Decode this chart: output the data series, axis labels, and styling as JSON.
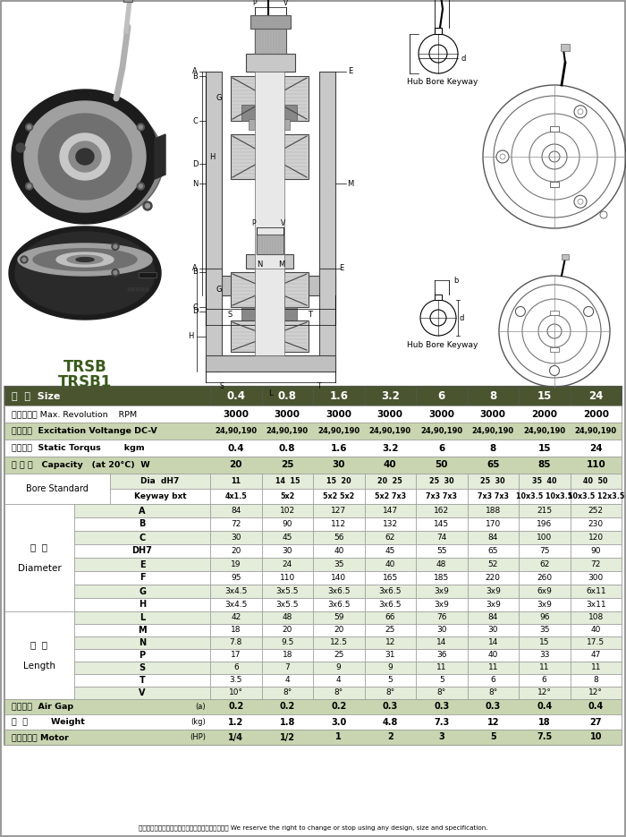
{
  "header_bg": "#4a5530",
  "header_text": "#ffffff",
  "row_bg_dark": "#c8d5b0",
  "row_bg_light": "#e4ecda",
  "row_bg_white": "#ffffff",
  "border_color": "#999999",
  "sizes": [
    "0.4",
    "0.8",
    "1.6",
    "3.2",
    "6",
    "8",
    "15",
    "24"
  ],
  "rpm_vals": [
    "3000",
    "3000",
    "3000",
    "3000",
    "3000",
    "3000",
    "2000",
    "2000"
  ],
  "voltage_vals": [
    "24,90,190",
    "24,90,190",
    "24,90,190",
    "24,90,190",
    "24,90,190",
    "24,90,190",
    "24,90,190",
    "24,90,190"
  ],
  "torque_vals": [
    "0.4",
    "0.8",
    "1.6",
    "3.2",
    "6",
    "8",
    "15",
    "24"
  ],
  "capacity_vals": [
    "20",
    "25",
    "30",
    "40",
    "50",
    "65",
    "85",
    "110"
  ],
  "dia_vals": [
    "11",
    "14  15",
    "15  20",
    "20  25",
    "25  30",
    "25  30",
    "35  40",
    "40  50"
  ],
  "key_vals": [
    "4x1.5",
    "5x2",
    "5x2 5x2",
    "5x2 7x3",
    "7x3 7x3",
    "7x3 7x3",
    "10x3.5 10x3.5",
    "10x3.5 12x3.5"
  ],
  "diam_A": [
    "84",
    "102",
    "127",
    "147",
    "162",
    "188",
    "215",
    "252"
  ],
  "diam_B": [
    "72",
    "90",
    "112",
    "132",
    "145",
    "170",
    "196",
    "230"
  ],
  "diam_C": [
    "30",
    "45",
    "56",
    "62",
    "74",
    "84",
    "100",
    "120"
  ],
  "diam_DH7": [
    "20",
    "30",
    "40",
    "45",
    "55",
    "65",
    "75",
    "90"
  ],
  "diam_E": [
    "19",
    "24",
    "35",
    "40",
    "48",
    "52",
    "62",
    "72"
  ],
  "diam_F": [
    "95",
    "110",
    "140",
    "165",
    "185",
    "220",
    "260",
    "300"
  ],
  "diam_G": [
    "3x4.5",
    "3x5.5",
    "3x6.5",
    "3x6.5",
    "3x9",
    "3x9",
    "6x9",
    "6x11"
  ],
  "diam_H": [
    "3x4.5",
    "3x5.5",
    "3x6.5",
    "3x6.5",
    "3x9",
    "3x9",
    "3x9",
    "3x11"
  ],
  "len_L": [
    "42",
    "48",
    "59",
    "66",
    "76",
    "84",
    "96",
    "108"
  ],
  "len_M": [
    "18",
    "20",
    "20",
    "25",
    "30",
    "30",
    "35",
    "40"
  ],
  "len_N": [
    "7.8",
    "9.5",
    "12.5",
    "12",
    "14",
    "14",
    "15",
    "17.5"
  ],
  "len_P": [
    "17",
    "18",
    "25",
    "31",
    "36",
    "40",
    "33",
    "47"
  ],
  "len_S": [
    "6",
    "7",
    "9",
    "9",
    "11",
    "11",
    "11",
    "11"
  ],
  "len_T": [
    "3.5",
    "4",
    "4",
    "5",
    "5",
    "6",
    "6",
    "8"
  ],
  "len_V": [
    "10°",
    "8°",
    "8°",
    "8°",
    "8°",
    "8°",
    "12°",
    "12°"
  ],
  "air_gap_vals": [
    "0.2",
    "0.2",
    "0.2",
    "0.3",
    "0.3",
    "0.3",
    "0.4",
    "0.4"
  ],
  "weight_vals": [
    "1.2",
    "1.8",
    "3.0",
    "4.8",
    "7.3",
    "12",
    "18",
    "27"
  ],
  "motor_vals": [
    "1/4",
    "1/2",
    "1",
    "2",
    "3",
    "5",
    "7.5",
    "10"
  ],
  "footer_text": "本公司保留產品規格、尺寸設計變更或停用之權利。 We reserve the right to change or stop using any design, size and specification."
}
